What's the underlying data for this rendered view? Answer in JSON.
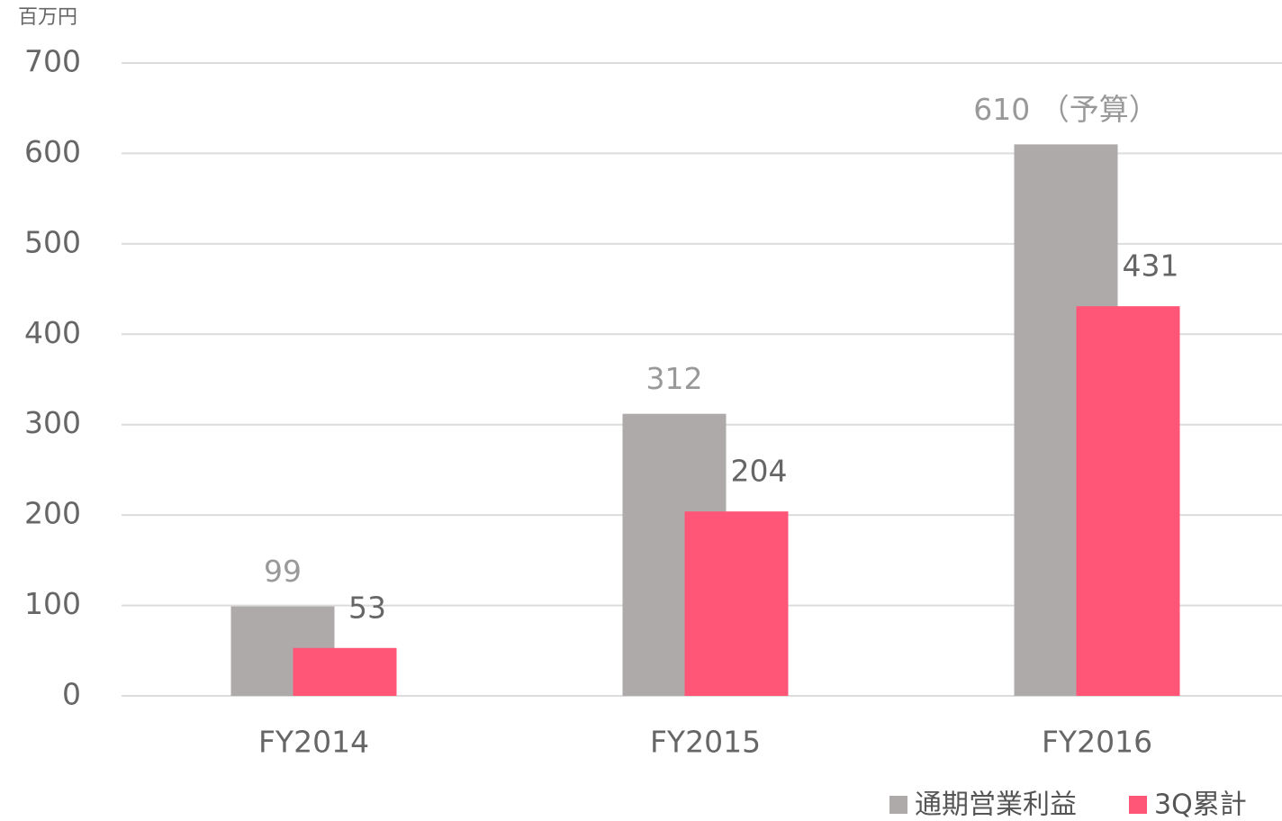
{
  "chart_data": {
    "type": "bar",
    "y_axis_label": "百万円",
    "categories": [
      "FY2014",
      "FY2015",
      "FY2016"
    ],
    "series": [
      {
        "name": "通期営業利益",
        "color": "#aeaaa9",
        "values": [
          99,
          312,
          610
        ],
        "value_labels": [
          "99",
          "312",
          "610 （予算）"
        ]
      },
      {
        "name": "3Q累計",
        "color": "#ff5678",
        "values": [
          53,
          204,
          431
        ]
      }
    ],
    "ylim": [
      0,
      700
    ],
    "yticks": [
      0,
      100,
      200,
      300,
      400,
      500,
      600,
      700
    ],
    "grid": true,
    "legend": "bottom-right"
  }
}
